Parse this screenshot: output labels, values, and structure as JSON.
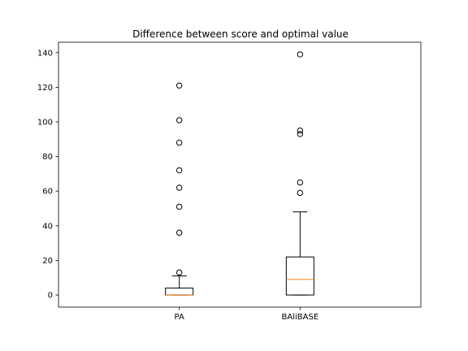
{
  "chart_data": {
    "type": "box",
    "title": "Difference between score and optimal value",
    "xlabel": "",
    "ylabel": "",
    "ylim": [
      -7,
      146
    ],
    "yticks": [
      0,
      20,
      40,
      60,
      80,
      100,
      120,
      140
    ],
    "grid": false,
    "categories": [
      "PA",
      "BAliBASE"
    ],
    "boxes": [
      {
        "label": "PA",
        "whisker_low": 0,
        "q1": 0,
        "median": 0,
        "q3": 4,
        "whisker_high": 11,
        "outliers": [
          13,
          36,
          51,
          62,
          72,
          88,
          101,
          121
        ]
      },
      {
        "label": "BAliBASE",
        "whisker_low": 0,
        "q1": 0,
        "median": 9,
        "q3": 22,
        "whisker_high": 48,
        "outliers": [
          59,
          65,
          93,
          95,
          139
        ]
      }
    ],
    "colors": {
      "box": "#000000",
      "median": "#ff7f0e",
      "outlier": "#000000"
    }
  }
}
